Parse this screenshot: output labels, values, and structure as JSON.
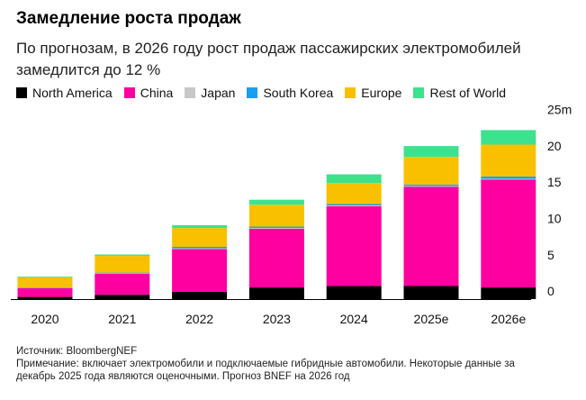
{
  "title": "Замедление роста продаж",
  "subtitle": "По прогнозам, в 2026 году рост продаж пассажирских электромобилей замедлится до 12 %",
  "source": "Источник: BloombergNEF",
  "note": "Примечание: включает электромобили и подключаемые гибридные автомобили. Некоторые данные за декабрь 2025 года являются оценочными. Прогноз BNEF на 2026 год",
  "chart_data": {
    "type": "bar",
    "stacked": true,
    "categories": [
      "2020",
      "2021",
      "2022",
      "2023",
      "2024",
      "2025e",
      "2026e"
    ],
    "series": [
      {
        "name": "North America",
        "color": "#000000",
        "values": [
          0.3,
          0.6,
          1.0,
          1.6,
          1.8,
          1.8,
          1.6
        ]
      },
      {
        "name": "China",
        "color": "#ff00a0",
        "values": [
          1.2,
          2.9,
          5.9,
          8.1,
          11.0,
          13.7,
          14.9
        ]
      },
      {
        "name": "Japan",
        "color": "#c8c8c8",
        "values": [
          0.03,
          0.05,
          0.1,
          0.1,
          0.1,
          0.1,
          0.1
        ]
      },
      {
        "name": "South Korea",
        "color": "#1a9ff0",
        "values": [
          0.07,
          0.1,
          0.2,
          0.2,
          0.2,
          0.2,
          0.3
        ]
      },
      {
        "name": "Europe",
        "color": "#f9c000",
        "values": [
          1.4,
          2.3,
          2.6,
          3.0,
          2.9,
          3.8,
          4.4
        ]
      },
      {
        "name": "Rest of World",
        "color": "#3de28f",
        "values": [
          0.1,
          0.2,
          0.4,
          0.7,
          1.2,
          1.5,
          2.0
        ]
      }
    ],
    "ylim": [
      0,
      25
    ],
    "yticks": [
      "0",
      "5",
      "10",
      "15",
      "20",
      "25m"
    ],
    "ytick_values": [
      0,
      5,
      10,
      15,
      20,
      25
    ],
    "ylabel": "",
    "xlabel": "",
    "grid": false,
    "legend_position": "top-left"
  }
}
